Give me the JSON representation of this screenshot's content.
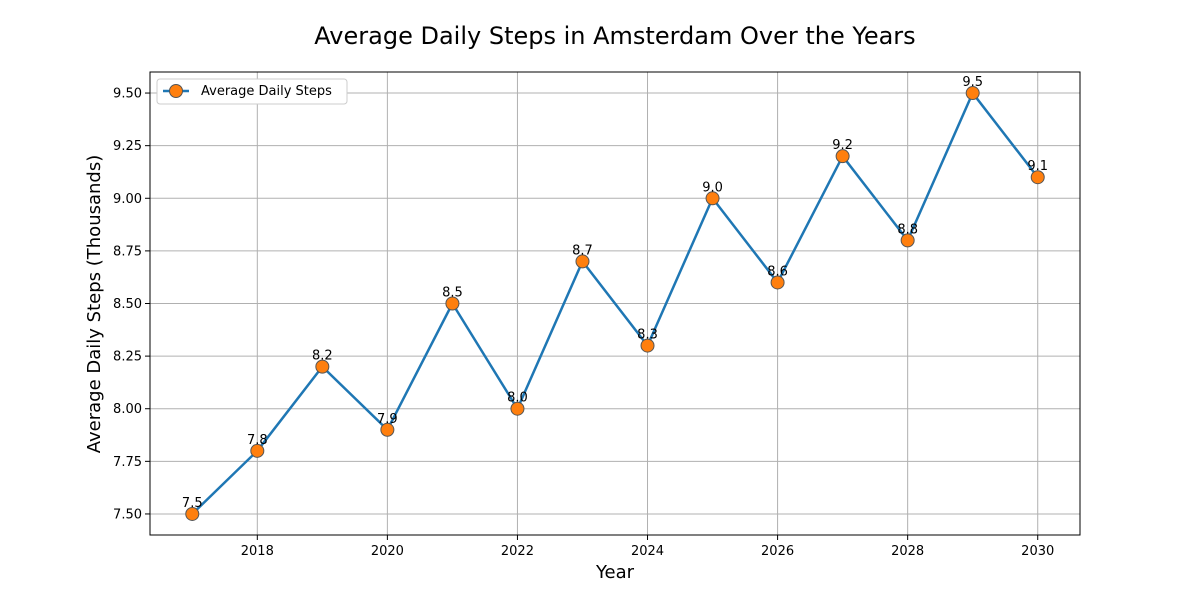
{
  "chart_data": {
    "type": "line",
    "title": "Average Daily Steps in Amsterdam Over the Years",
    "xlabel": "Year",
    "ylabel": "Average Daily Steps (Thousands)",
    "x": [
      2017,
      2018,
      2019,
      2020,
      2021,
      2022,
      2023,
      2024,
      2025,
      2026,
      2027,
      2028,
      2029,
      2030
    ],
    "series": [
      {
        "name": "Average Daily Steps",
        "values": [
          7.5,
          7.8,
          8.2,
          7.9,
          8.5,
          8.0,
          8.7,
          8.3,
          9.0,
          8.6,
          9.2,
          8.8,
          9.5,
          9.1
        ],
        "data_labels": [
          "7.5",
          "7.8",
          "8.2",
          "7.9",
          "8.5",
          "8.0",
          "8.7",
          "8.3",
          "9.0",
          "8.6",
          "9.2",
          "8.8",
          "9.5",
          "9.1"
        ]
      }
    ],
    "xlim": [
      2016.35,
      2030.65
    ],
    "ylim": [
      7.4,
      9.6
    ],
    "xticks": [
      2018,
      2020,
      2022,
      2024,
      2026,
      2028,
      2030
    ],
    "xtick_labels": [
      "2018",
      "2020",
      "2022",
      "2024",
      "2026",
      "2028",
      "2030"
    ],
    "yticks": [
      7.5,
      7.75,
      8.0,
      8.25,
      8.5,
      8.75,
      9.0,
      9.25,
      9.5
    ],
    "ytick_labels": [
      "7.50",
      "7.75",
      "8.00",
      "8.25",
      "8.50",
      "8.75",
      "9.00",
      "9.25",
      "9.50"
    ],
    "grid": true,
    "legend_position": "top-left",
    "colors": {
      "line": "#1f77b4",
      "marker_fill": "#ff7f0e",
      "marker_edge": "#555555",
      "grid": "#b0b0b0",
      "axes": "#000000",
      "text": "#000000"
    }
  }
}
